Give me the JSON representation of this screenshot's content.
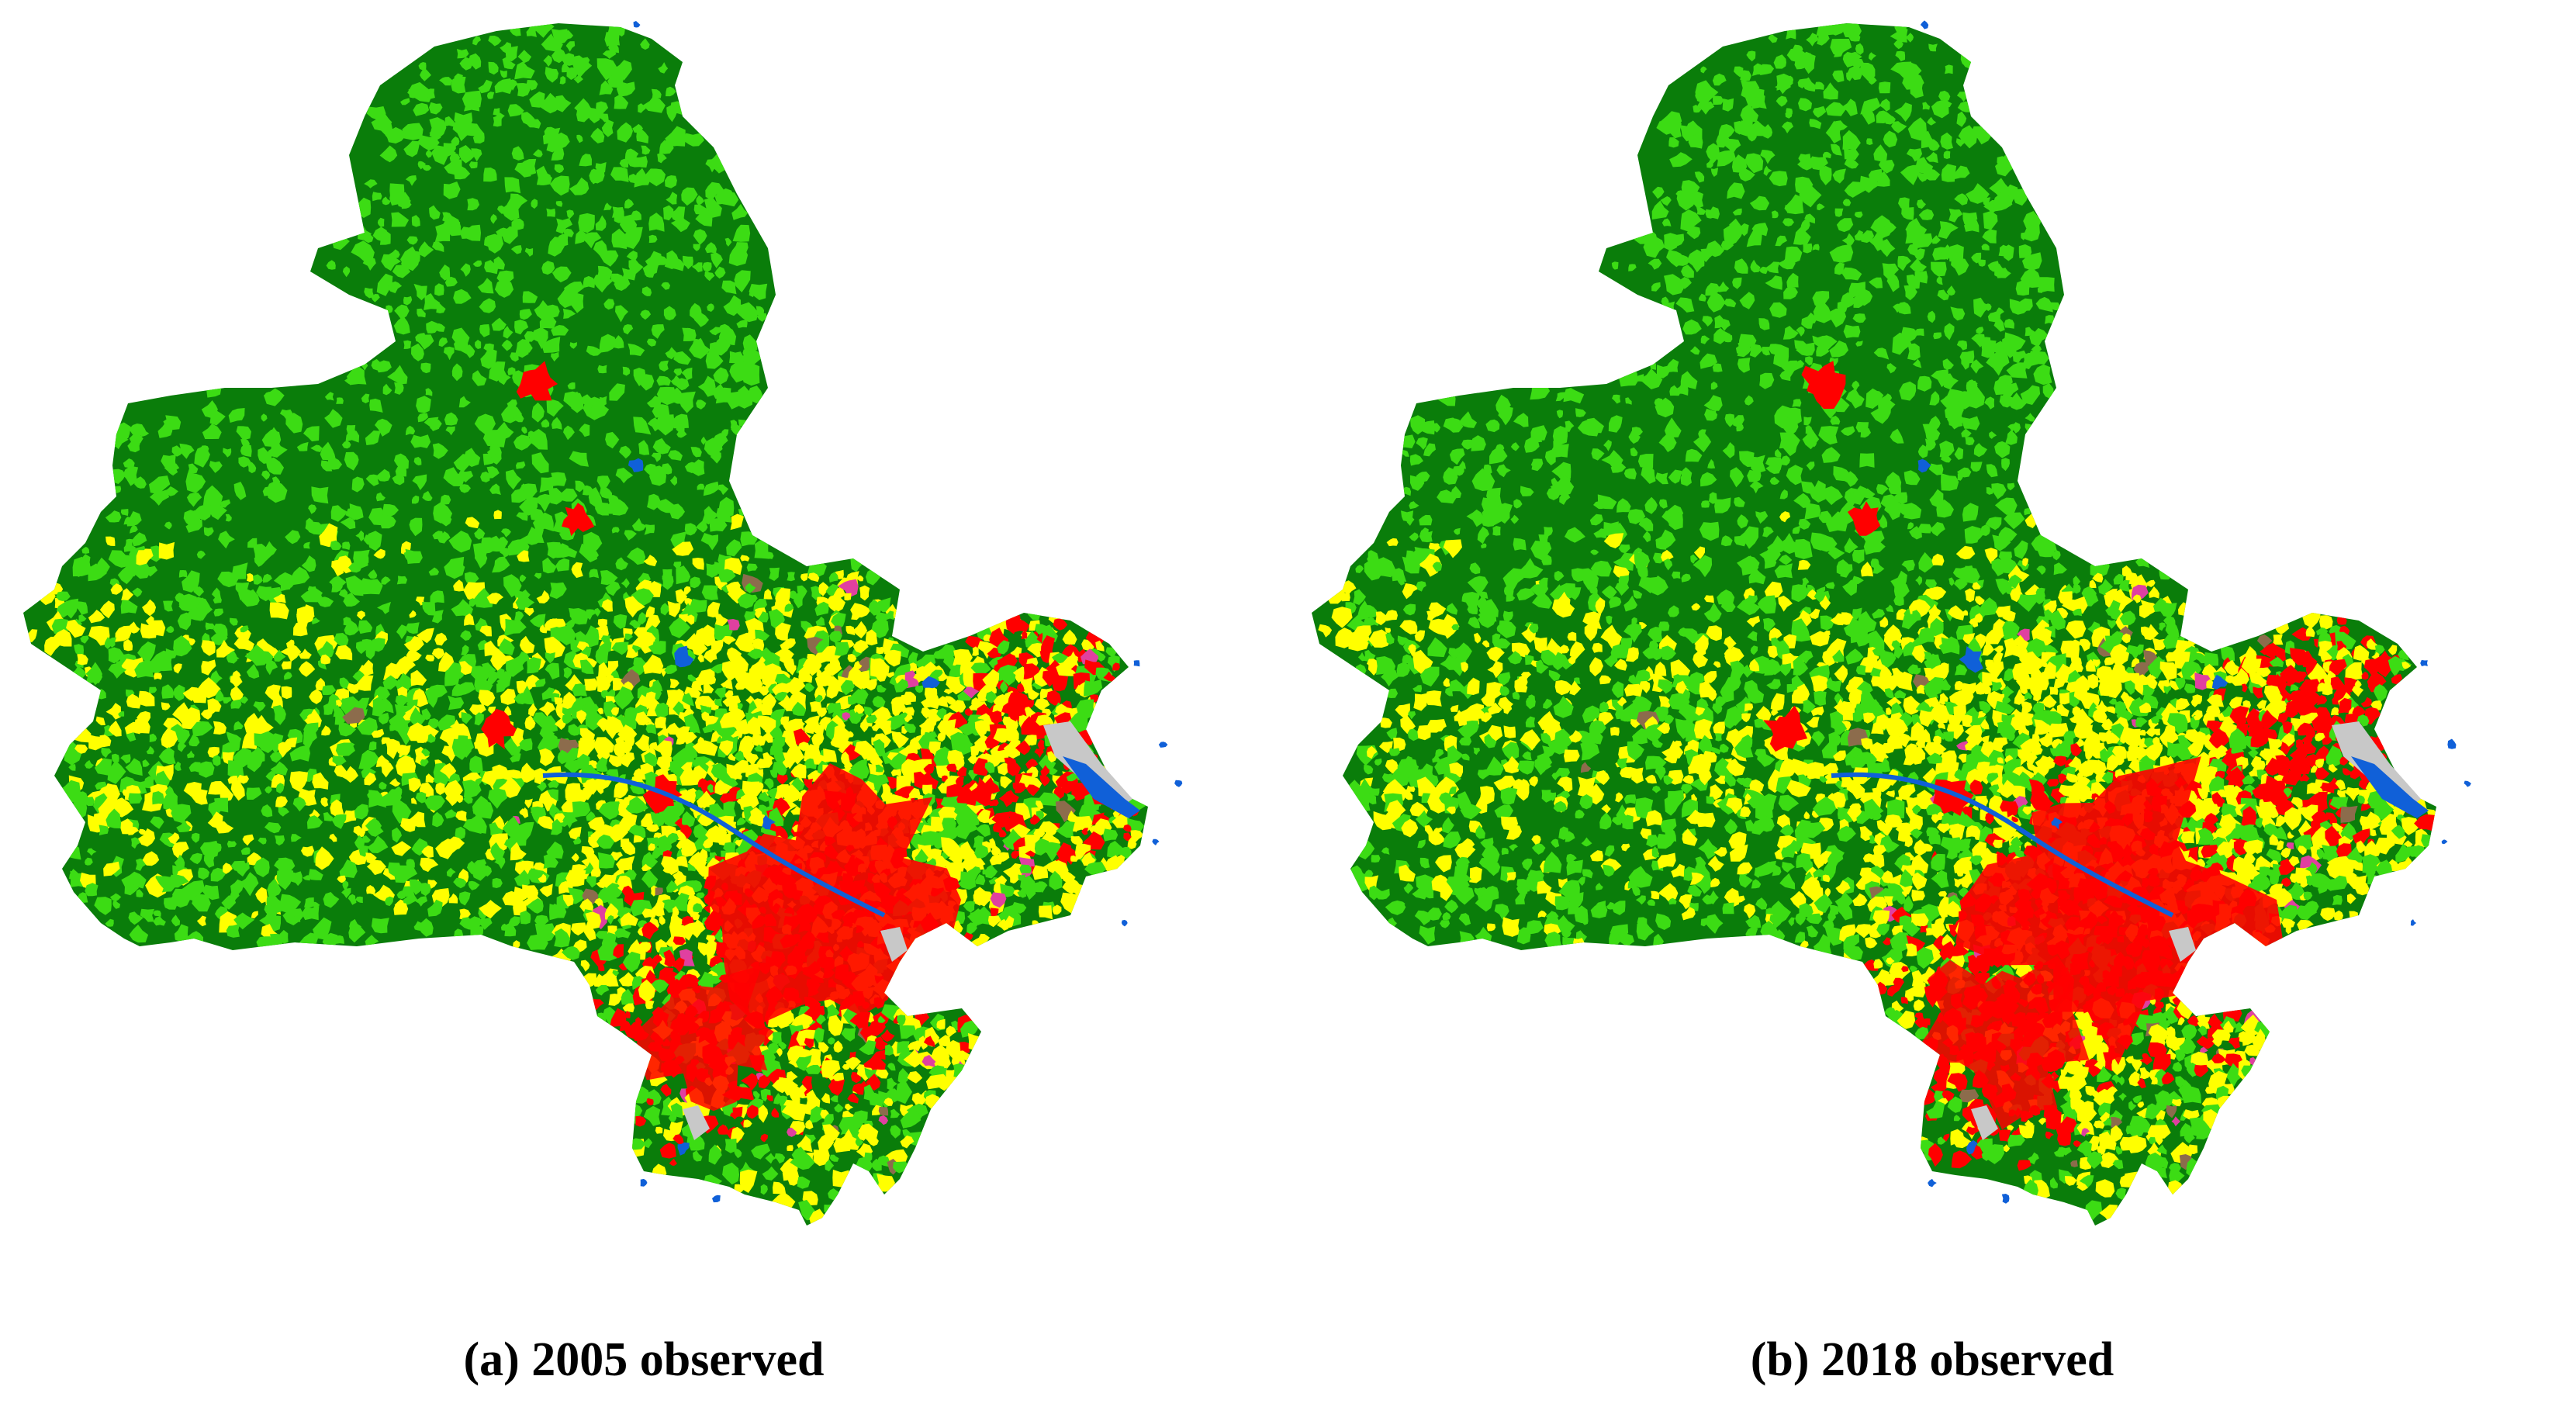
{
  "colors": {
    "forest": "#0a7d0a",
    "grassland": "#3cdc14",
    "cropland": "#ffff00",
    "built_up": "#ff0000",
    "water": "#1060d8",
    "bare_land": "#c8c8c8",
    "shrub": "#8c6c4c",
    "orchard": "#e040a0"
  },
  "panels": [
    {
      "caption": "(a) 2005 observed",
      "built_up_level": 0.16
    },
    {
      "caption": "(b) 2018 observed",
      "built_up_level": 0.26
    }
  ]
}
